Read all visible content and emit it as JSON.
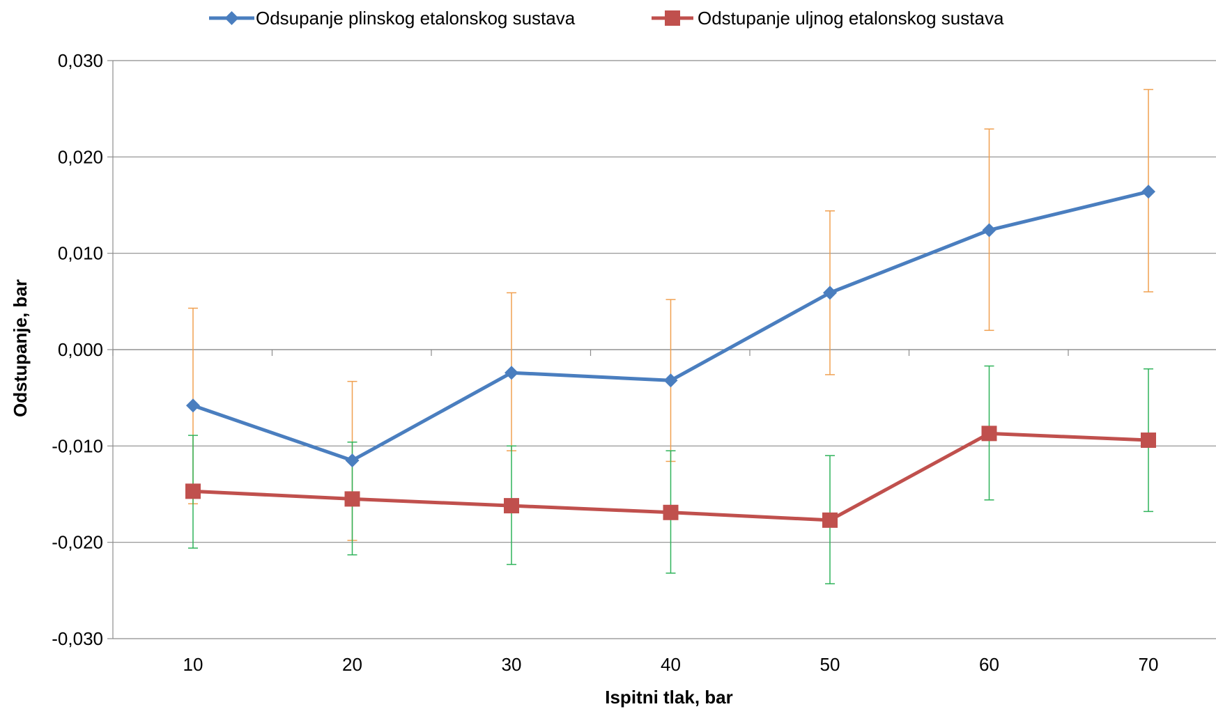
{
  "chart_data": {
    "type": "line",
    "x": [
      10,
      20,
      30,
      40,
      50,
      60,
      70
    ],
    "xlabel": "Ispitni tlak, bar",
    "ylabel": "Odstupanje, bar",
    "ylim": [
      -0.03,
      0.03
    ],
    "yticks": [
      "-0,030",
      "-0,020",
      "-0,010",
      "0,000",
      "0,010",
      "0,020",
      "0,030"
    ],
    "xticks": [
      "10",
      "20",
      "30",
      "40",
      "50",
      "60",
      "70"
    ],
    "grid": true,
    "legend_position": "top",
    "series": [
      {
        "name": "Odsupanje plinskog etalonskog sustava",
        "color": "#4a7ebf",
        "errorbar_color": "#f0a050",
        "marker": "diamond",
        "values": [
          -0.0058,
          -0.0115,
          -0.0024,
          -0.0032,
          0.0059,
          0.0124,
          0.0164
        ],
        "error_upper": [
          0.0043,
          -0.0033,
          0.0059,
          0.0052,
          0.0144,
          0.0229,
          0.027
        ],
        "error_lower": [
          -0.016,
          -0.0198,
          -0.0105,
          -0.0116,
          -0.0026,
          0.002,
          0.006
        ]
      },
      {
        "name": "Odstupanje uljnog etalonskog sustava",
        "color": "#c0504d",
        "errorbar_color": "#2fb35a",
        "marker": "square",
        "values": [
          -0.0147,
          -0.0155,
          -0.0162,
          -0.0169,
          -0.0177,
          -0.0087,
          -0.0094
        ],
        "error_upper": [
          -0.0089,
          -0.0096,
          -0.01,
          -0.0105,
          -0.011,
          -0.0017,
          -0.002
        ],
        "error_lower": [
          -0.0206,
          -0.0213,
          -0.0223,
          -0.0232,
          -0.0243,
          -0.0156,
          -0.0168
        ]
      }
    ]
  }
}
